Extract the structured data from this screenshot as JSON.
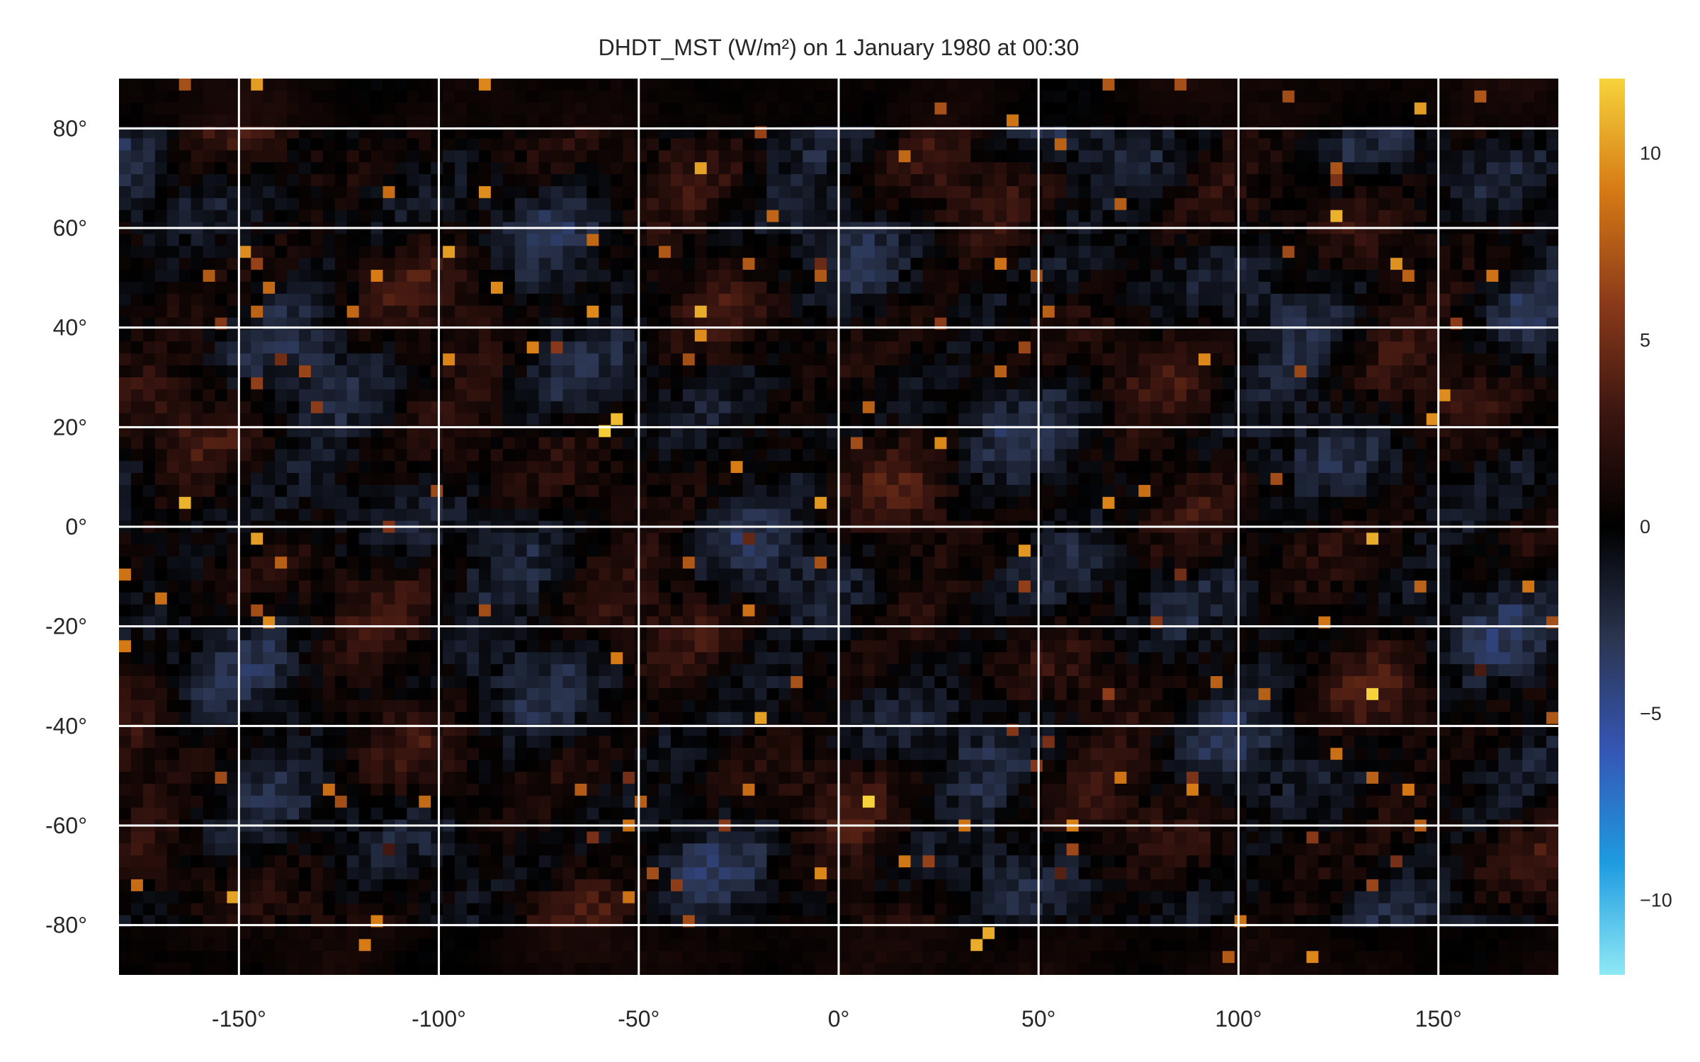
{
  "chart_data": {
    "type": "heatmap",
    "title": "DHDT_MST (W/m²) on 1 January 1980 at 00:30",
    "xlabel": "",
    "ylabel": "",
    "xlim": [
      -180,
      180
    ],
    "ylim": [
      -90,
      90
    ],
    "x_ticks": [
      {
        "value": -150,
        "label": "-150°"
      },
      {
        "value": -100,
        "label": "-100°"
      },
      {
        "value": -50,
        "label": "-50°"
      },
      {
        "value": 0,
        "label": "0°"
      },
      {
        "value": 50,
        "label": "50°"
      },
      {
        "value": 100,
        "label": "100°"
      },
      {
        "value": 150,
        "label": "150°"
      }
    ],
    "y_ticks": [
      {
        "value": 80,
        "label": "80°"
      },
      {
        "value": 60,
        "label": "60°"
      },
      {
        "value": 40,
        "label": "40°"
      },
      {
        "value": 20,
        "label": "20°"
      },
      {
        "value": 0,
        "label": "0°"
      },
      {
        "value": -20,
        "label": "-20°"
      },
      {
        "value": -40,
        "label": "-40°"
      },
      {
        "value": -60,
        "label": "-60°"
      },
      {
        "value": -80,
        "label": "-80°"
      }
    ],
    "grid": true,
    "grid_color": "#ffffff",
    "colorbar": {
      "range": [
        -12,
        12
      ],
      "ticks": [
        {
          "value": 10,
          "label": "10"
        },
        {
          "value": 5,
          "label": "5"
        },
        {
          "value": 0,
          "label": "0"
        },
        {
          "value": -5,
          "label": "−5"
        },
        {
          "value": -10,
          "label": "−10"
        }
      ],
      "colormap": [
        "#8fe9f5",
        "#1e9be0",
        "#3556b5",
        "#2b3550",
        "#000000",
        "#3a1510",
        "#8b3a1a",
        "#d67a15",
        "#f7d33b"
      ]
    }
  }
}
